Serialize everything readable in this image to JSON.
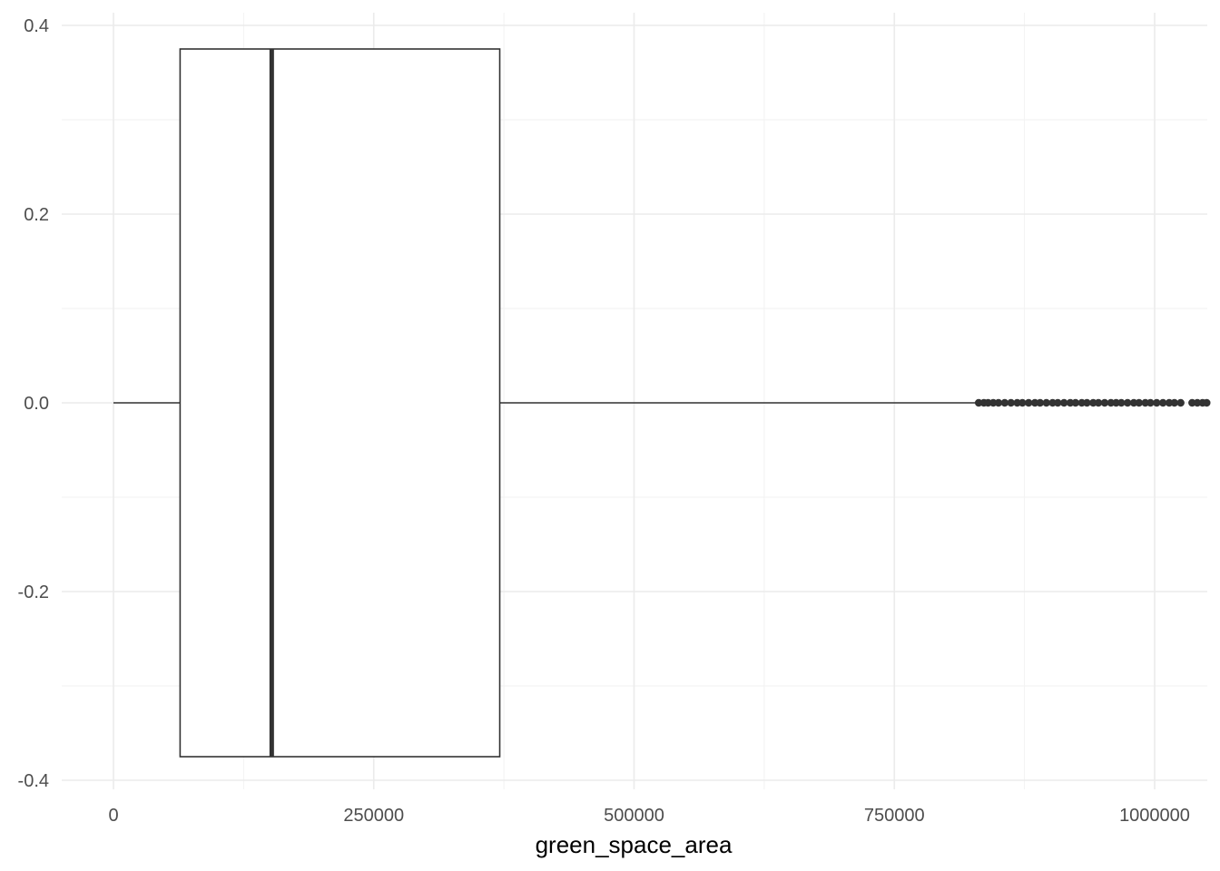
{
  "chart_data": {
    "type": "boxplot",
    "orientation": "horizontal",
    "xlabel": "green_space_area",
    "ylabel": "",
    "title": "",
    "xlim": [
      -100000,
      1050000
    ],
    "ylim": [
      -0.42,
      0.42
    ],
    "x_ticks": [
      0,
      250000,
      500000,
      750000,
      1000000
    ],
    "x_tick_labels": [
      "0",
      "250000",
      "500000",
      "750000",
      "1000000"
    ],
    "x_minor_ticks": [
      125000,
      375000,
      625000,
      875000
    ],
    "y_ticks": [
      -0.4,
      -0.2,
      0.0,
      0.2,
      0.4
    ],
    "y_tick_labels": [
      "-0.4",
      "-0.2",
      "0.0",
      "0.2",
      "0.4"
    ],
    "y_minor_ticks": [
      -0.3,
      -0.1,
      0.1,
      0.3
    ],
    "grid": true,
    "box": {
      "min": 0,
      "q1": 64000,
      "median": 152000,
      "q3": 371000,
      "whisker_high": 831000,
      "y_low": -0.375,
      "y_high": 0.375,
      "y_center": 0
    },
    "outliers": [
      831000,
      836000,
      840000,
      845000,
      850000,
      856000,
      862000,
      868000,
      873000,
      879000,
      885000,
      890000,
      896000,
      902000,
      907000,
      913000,
      919000,
      924000,
      930000,
      935000,
      941000,
      946000,
      952000,
      958000,
      963000,
      968000,
      974000,
      980000,
      985000,
      991000,
      996000,
      1002000,
      1008000,
      1014000,
      1019000,
      1025000,
      1036000,
      1041000,
      1046000,
      1050000
    ],
    "colors": {
      "box_fill": "#ffffff",
      "box_stroke": "#333333",
      "median": "#333333",
      "outlier": "#333333",
      "grid_major": "#ebebeb",
      "grid_minor": "#f2f2f2"
    }
  }
}
